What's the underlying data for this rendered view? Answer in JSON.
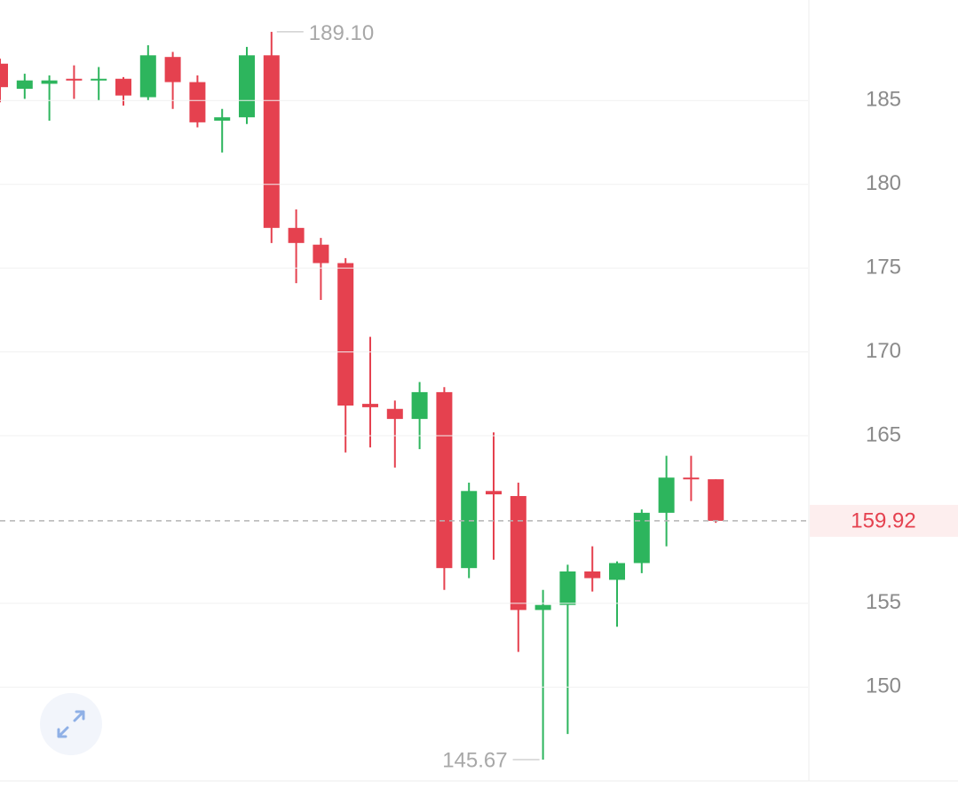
{
  "chart_data": {
    "type": "candlestick",
    "up_color": "#2db55d",
    "down_color": "#e5414f",
    "open": [
      187.2,
      185.7,
      186.0,
      186.3,
      186.2,
      186.3,
      185.2,
      187.6,
      186.1,
      183.8,
      184.0,
      187.7,
      177.4,
      176.4,
      175.3,
      166.9,
      166.6,
      166.0,
      167.6,
      157.1,
      161.7,
      161.4,
      154.6,
      154.9,
      156.9,
      156.4,
      157.4,
      160.4,
      162.5,
      162.4
    ],
    "high": [
      187.5,
      186.6,
      186.5,
      187.1,
      187.0,
      186.4,
      188.3,
      187.9,
      186.5,
      184.5,
      188.2,
      189.1,
      178.5,
      176.8,
      175.6,
      170.9,
      167.1,
      168.2,
      167.9,
      162.2,
      165.2,
      162.2,
      155.8,
      157.3,
      158.4,
      157.5,
      160.6,
      163.8,
      163.8,
      162.4
    ],
    "low": [
      184.9,
      185.1,
      183.8,
      185.1,
      185.0,
      184.7,
      185.0,
      184.5,
      183.4,
      181.9,
      183.6,
      176.5,
      174.1,
      173.1,
      164.0,
      164.3,
      163.1,
      164.2,
      155.8,
      156.5,
      157.6,
      152.1,
      145.67,
      147.2,
      155.7,
      153.6,
      156.8,
      158.4,
      161.1,
      159.8
    ],
    "close": [
      185.8,
      186.2,
      186.2,
      186.2,
      186.3,
      185.3,
      187.7,
      186.1,
      183.7,
      184.0,
      187.7,
      177.4,
      176.5,
      175.3,
      166.8,
      166.7,
      166.0,
      167.6,
      157.1,
      161.7,
      161.5,
      154.6,
      154.9,
      156.9,
      156.5,
      157.4,
      160.4,
      162.5,
      162.4,
      159.92
    ],
    "ylim": [
      144.4,
      191.0
    ],
    "yticks": [
      150,
      155,
      165,
      170,
      175,
      180,
      185
    ],
    "grid": true,
    "max_label": "189.10",
    "min_label": "145.67",
    "last_price": {
      "value": 159.92,
      "label": "159.92"
    }
  }
}
